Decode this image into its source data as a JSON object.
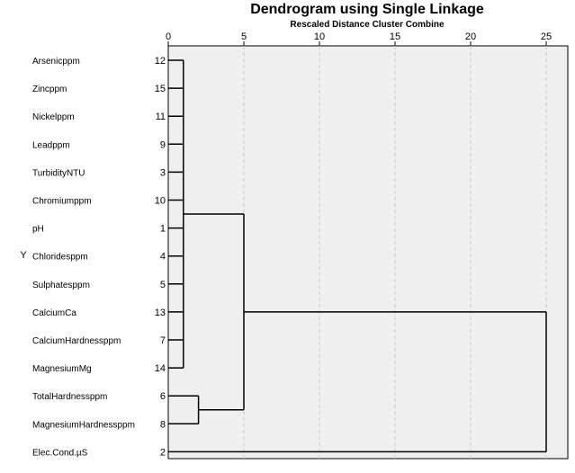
{
  "chart_data": {
    "type": "dendrogram",
    "title": "Dendrogram using Single Linkage",
    "subtitle": "Rescaled Distance Cluster Combine",
    "xlabel": "Rescaled Distance Cluster Combine",
    "ylabel": "Y",
    "xlim": [
      0,
      25
    ],
    "ticks": [
      0,
      5,
      10,
      15,
      20,
      25
    ],
    "gridlines": true,
    "leaves": [
      {
        "name": "Arsenicppm",
        "id": "12"
      },
      {
        "name": "Zincppm",
        "id": "15"
      },
      {
        "name": "Nickelppm",
        "id": "11"
      },
      {
        "name": "Leadppm",
        "id": "9"
      },
      {
        "name": "TurbidityNTU",
        "id": "3"
      },
      {
        "name": "Chromiumppm",
        "id": "10"
      },
      {
        "name": "pH",
        "id": "1"
      },
      {
        "name": "Chloridesppm",
        "id": "4"
      },
      {
        "name": "Sulphatesppm",
        "id": "5"
      },
      {
        "name": "CalciumCa",
        "id": "13"
      },
      {
        "name": "CalciumHardnessppm",
        "id": "7"
      },
      {
        "name": "MagnesiumMg",
        "id": "14"
      },
      {
        "name": "TotalHardnessppm",
        "id": "6"
      },
      {
        "name": "MagnesiumHardnessppm",
        "id": "8"
      },
      {
        "name": "Elec.Cond.µS",
        "id": "2"
      }
    ],
    "merges": [
      {
        "members": [
          0,
          1,
          2,
          3,
          4,
          5,
          6,
          7,
          8,
          9,
          10,
          11
        ],
        "distance": 1.0
      },
      {
        "members": [
          12,
          13
        ],
        "distance": 2.0
      },
      {
        "members": [
          "c0",
          "c1"
        ],
        "distance": 5.0
      },
      {
        "members": [
          "c2",
          14
        ],
        "distance": 25.0
      }
    ]
  }
}
